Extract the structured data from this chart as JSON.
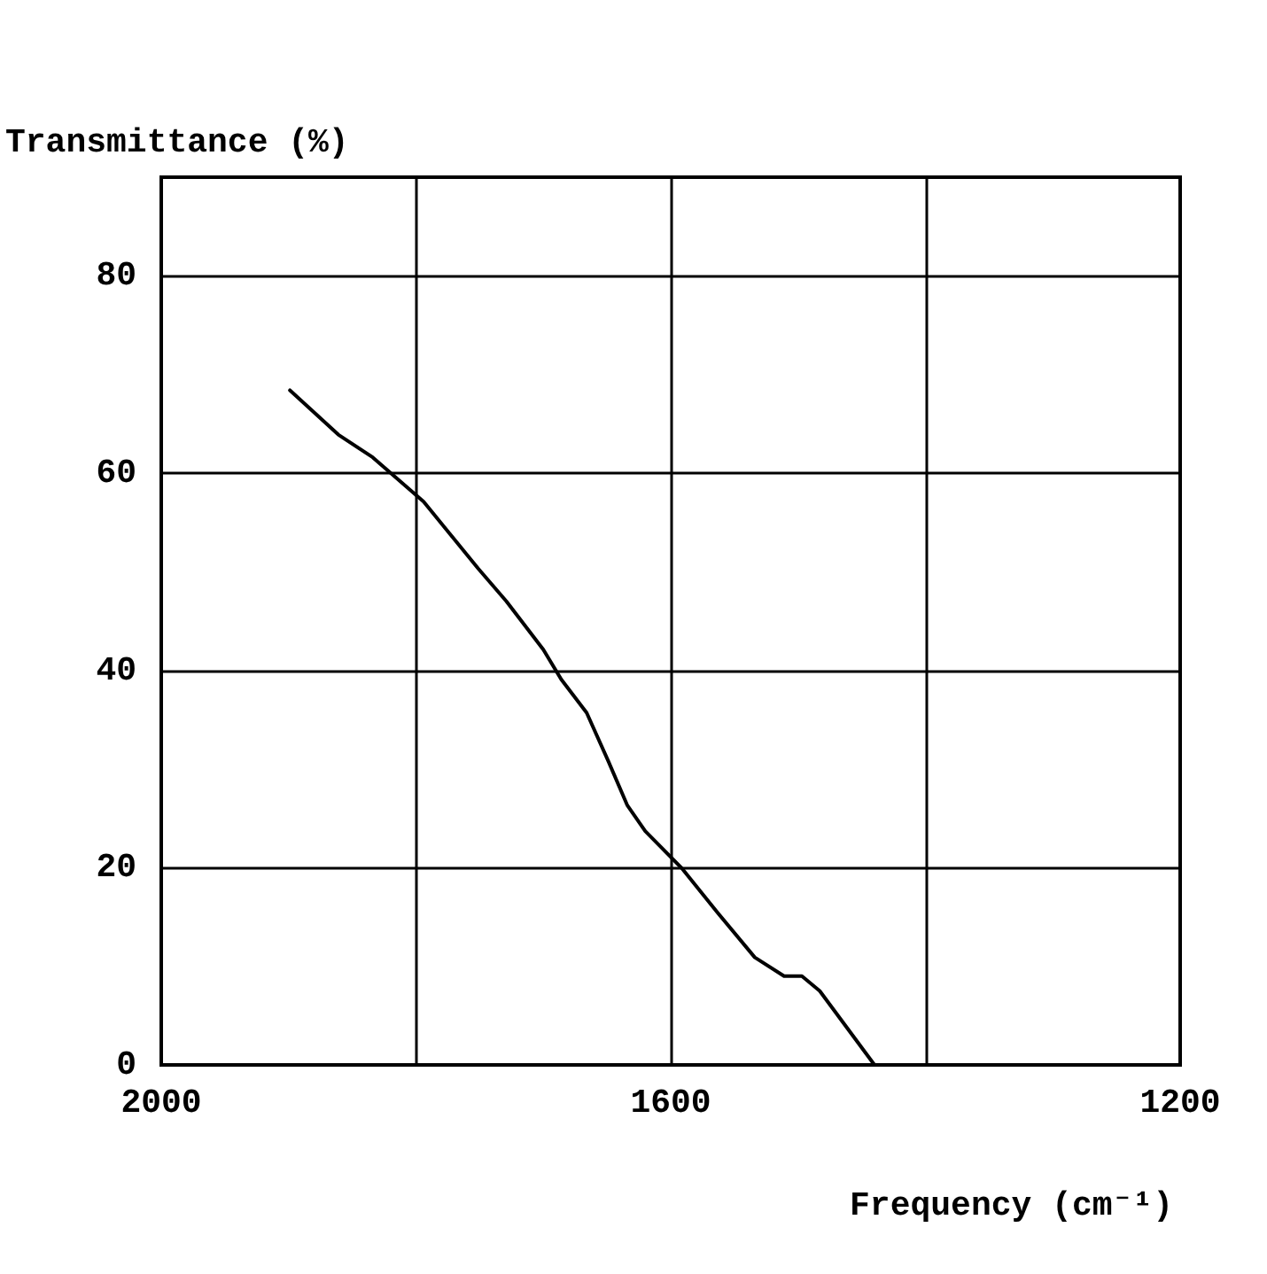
{
  "chart_data": {
    "type": "line",
    "xlabel": "Frequency (cm⁻¹)",
    "ylabel": "Transmittance (%)",
    "xlim": [
      2000,
      1200
    ],
    "xticks": [
      2000,
      {
        "value": 1800,
        "label": null
      },
      1600,
      {
        "value": 1400,
        "label": null
      },
      1200
    ],
    "ylim": [
      0,
      90
    ],
    "yticks": [
      0,
      20,
      40,
      60,
      80
    ],
    "grid": true,
    "marker": "none",
    "line_style": "solid",
    "series": [
      {
        "color": "#000000",
        "x": [
          1899,
          1861,
          1834,
          1794,
          1751,
          1729,
          1700,
          1686,
          1666,
          1649,
          1634,
          1620,
          1591,
          1563,
          1534,
          1511,
          1497,
          1483,
          1440
        ],
        "values": [
          68.4,
          63.9,
          61.6,
          57.1,
          50.3,
          47.0,
          42.1,
          39.1,
          35.7,
          30.8,
          26.3,
          23.7,
          19.9,
          15.4,
          10.9,
          9.0,
          9.0,
          7.5,
          0
        ]
      }
    ]
  }
}
